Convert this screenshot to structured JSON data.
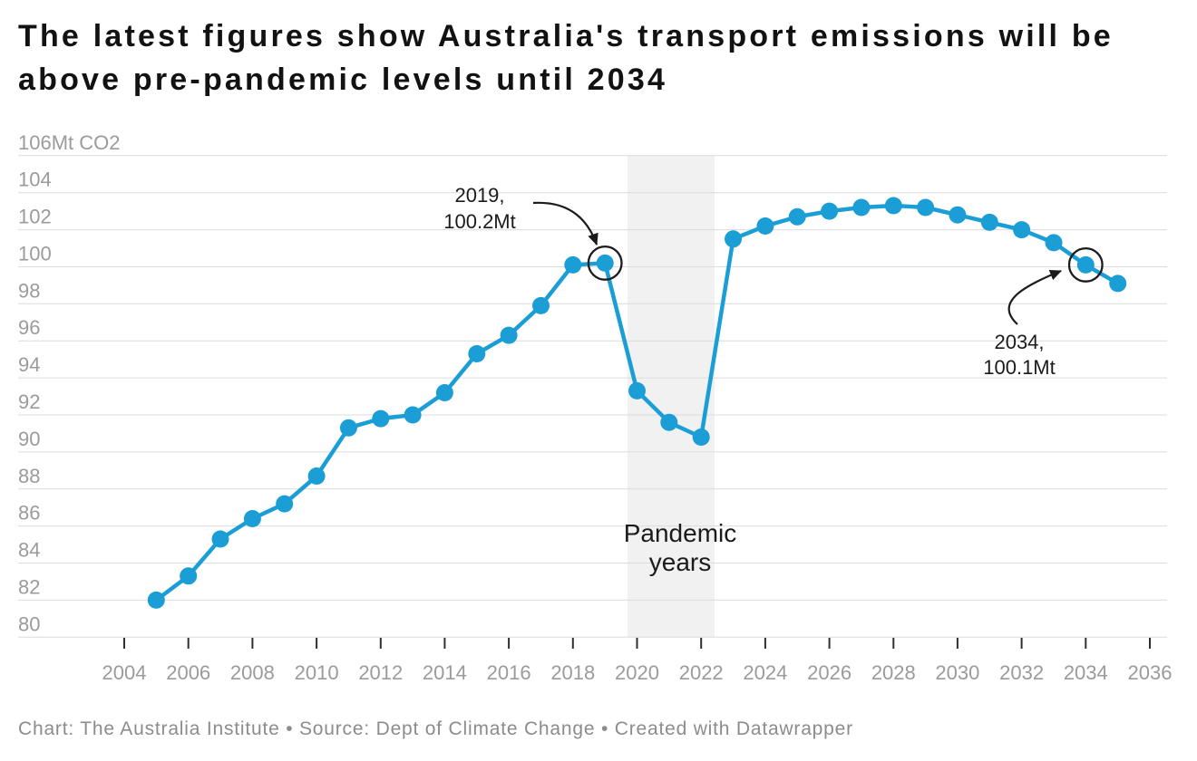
{
  "header": {
    "title": "The latest figures show Australia's transport emissions will be\nabove pre-pandemic levels until 2034"
  },
  "footer": {
    "text": "Chart: The Australia Institute • Source: Dept of Climate Change • Created with Datawrapper"
  },
  "chart_data": {
    "type": "line",
    "title": "The latest figures show Australia's transport emissions will be above pre-pandemic levels until 2034",
    "unit": "Mt CO2",
    "y_top_label": "106Mt CO2",
    "x": [
      2005,
      2006,
      2007,
      2008,
      2009,
      2010,
      2011,
      2012,
      2013,
      2014,
      2015,
      2016,
      2017,
      2018,
      2019,
      2020,
      2021,
      2022,
      2023,
      2024,
      2025,
      2026,
      2027,
      2028,
      2029,
      2030,
      2031,
      2032,
      2033,
      2034,
      2035
    ],
    "values": [
      82.0,
      83.3,
      85.3,
      86.4,
      87.2,
      88.7,
      91.3,
      91.8,
      92.0,
      93.2,
      95.3,
      96.3,
      97.9,
      100.1,
      100.2,
      93.3,
      91.6,
      90.8,
      101.5,
      102.2,
      102.7,
      103.0,
      103.2,
      103.3,
      103.2,
      102.8,
      102.4,
      102.0,
      101.3,
      100.1,
      99.1
    ],
    "xlim": [
      2004,
      2036
    ],
    "ylim": [
      80,
      106
    ],
    "x_ticks": [
      2004,
      2006,
      2008,
      2010,
      2012,
      2014,
      2016,
      2018,
      2020,
      2022,
      2024,
      2026,
      2028,
      2030,
      2032,
      2034,
      2036
    ],
    "y_ticks": [
      80,
      82,
      84,
      86,
      88,
      90,
      92,
      94,
      96,
      98,
      100,
      102,
      104,
      106
    ],
    "grid": "horizontal",
    "legend": "none",
    "line_color": "#1b9dd6",
    "grid_color": "#dcdcdc",
    "axis_label_color": "#9b9b9b",
    "annotation_color": "#1b1b1b",
    "band": {
      "label": "Pandemic\nyears",
      "x_from": 2019.7,
      "x_to": 2022.42,
      "color": "#f1f1f1"
    },
    "annotations": [
      {
        "x": 2019,
        "y": 100.2,
        "label": "2019,\n100.2Mt"
      },
      {
        "x": 2034,
        "y": 100.1,
        "label": "2034,\n100.1Mt"
      }
    ]
  }
}
